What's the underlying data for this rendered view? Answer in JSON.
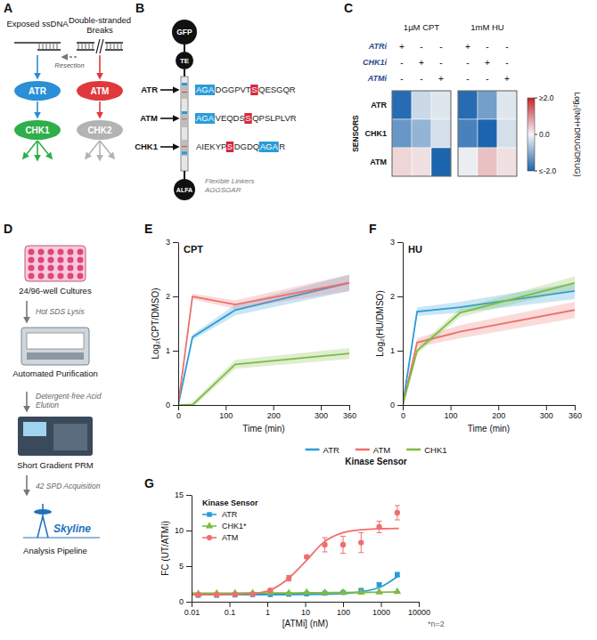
{
  "panel_letters": [
    "A",
    "B",
    "C",
    "D",
    "E",
    "F",
    "G"
  ],
  "diagram_a": {
    "left_title": "Exposed ssDNA",
    "right_title": "Double-stranded Breaks",
    "arrow_label": "Resection",
    "nodes": [
      {
        "label": "ATR",
        "color": "#2b8fd6"
      },
      {
        "label": "ATM",
        "color": "#e0383b"
      },
      {
        "label": "CHK1",
        "color": "#2fae4a"
      },
      {
        "label": "CHK2",
        "color": "#b3b3b3"
      }
    ]
  },
  "diagram_b": {
    "tags": [
      "GFP",
      "TE",
      "ALFA"
    ],
    "sensors": [
      {
        "label": "ATR",
        "segments": [
          {
            "text": "AGA",
            "kind": "linker"
          },
          {
            "text": "DGGPVT",
            "kind": "plain"
          },
          {
            "text": "S",
            "kind": "site"
          },
          {
            "text": "QESGQR",
            "kind": "plain"
          }
        ]
      },
      {
        "label": "ATM",
        "segments": [
          {
            "text": "AGA",
            "kind": "linker"
          },
          {
            "text": "VEQDS",
            "kind": "plain"
          },
          {
            "text": "S",
            "kind": "site"
          },
          {
            "text": "QPSLPLVR",
            "kind": "plain"
          }
        ]
      },
      {
        "label": "CHK1",
        "segments": [
          {
            "text": "AIEKYP",
            "kind": "plain"
          },
          {
            "text": "S",
            "kind": "site"
          },
          {
            "text": "DGDQ",
            "kind": "plain"
          },
          {
            "text": "AGA",
            "kind": "linker"
          },
          {
            "text": "R",
            "kind": "plain"
          }
        ]
      }
    ],
    "linker_note": "Flexible Linkers AGGSGAR"
  },
  "diagram_d": {
    "steps": [
      "24/96-well Cultures",
      "Automated Purification",
      "Short Gradient PRM",
      "Analysis Pipeline"
    ],
    "transitions": [
      "Hot SDS Lysis",
      "Detergent-free Acid Elution",
      "42 SPD Acquisition"
    ],
    "logo": "Skyline"
  },
  "chart_data": [
    {
      "type": "heatmap",
      "panels": [
        {
          "title": "1µM CPT",
          "cells": [
            [
              -1.9,
              -0.4,
              -0.2
            ],
            [
              -1.3,
              -0.9,
              -0.3
            ],
            [
              0.3,
              0.2,
              -2.0
            ]
          ]
        },
        {
          "title": "1mM HU",
          "cells": [
            [
              -1.9,
              -1.2,
              -0.2
            ],
            [
              -1.6,
              -2.0,
              -0.3
            ],
            [
              -0.1,
              0.5,
              0.2
            ]
          ]
        }
      ],
      "inhibitors": [
        {
          "name": "ATRi",
          "signs": [
            "+",
            "-",
            "-"
          ]
        },
        {
          "name": "CHK1i",
          "signs": [
            "-",
            "+",
            "-"
          ]
        },
        {
          "name": "ATMi",
          "signs": [
            "-",
            "-",
            "+"
          ]
        }
      ],
      "rows": [
        "ATR",
        "CHK1",
        "ATM"
      ],
      "row_title": "SENSORS",
      "colorbar": {
        "title": "Log₂(INH+DRUG/DRUG)",
        "range": [
          -2,
          2
        ],
        "ticks": [
          {
            "value": 2,
            "label": "≥2.0"
          },
          {
            "value": 0,
            "label": "0.0"
          },
          {
            "value": -2,
            "label": "≤-2.0"
          }
        ],
        "colors": [
          "#1c65ae",
          "#f5f5f5",
          "#c4262c"
        ]
      }
    },
    {
      "type": "line",
      "title": "CPT",
      "x_label": "Time (min)",
      "y_label": "Log₂(CPT/DMSO)",
      "x": [
        0,
        30,
        120,
        360
      ],
      "xlim": [
        0,
        360
      ],
      "xticks": [
        0,
        100,
        200,
        300,
        360
      ],
      "ylim": [
        0,
        3
      ],
      "yticks": [
        0,
        1,
        2,
        3
      ],
      "legend": "bottom",
      "legend_title": "Kinase Sensor",
      "series": [
        {
          "name": "ATR",
          "color": "#2b9bd8",
          "values": [
            0,
            1.25,
            1.75,
            2.25
          ],
          "errors": [
            0,
            0.05,
            0.1,
            0.15
          ]
        },
        {
          "name": "ATM",
          "color": "#ef6f6c",
          "values": [
            0,
            2.0,
            1.85,
            2.25
          ],
          "errors": [
            0,
            0.05,
            0.08,
            0.15
          ]
        },
        {
          "name": "CHK1",
          "color": "#7dbb42",
          "values": [
            0,
            0.0,
            0.75,
            0.95
          ],
          "errors": [
            0,
            0.05,
            0.08,
            0.1
          ]
        }
      ]
    },
    {
      "type": "line",
      "title": "HU",
      "x_label": "Time (min)",
      "y_label": "Log₂(HU/DMSO)",
      "x": [
        0,
        30,
        120,
        360
      ],
      "xlim": [
        0,
        360
      ],
      "xticks": [
        0,
        100,
        200,
        300,
        360
      ],
      "ylim": [
        0,
        3
      ],
      "yticks": [
        0,
        1,
        2,
        3
      ],
      "series": [
        {
          "name": "ATR",
          "color": "#2b9bd8",
          "values": [
            0,
            1.72,
            1.8,
            2.1
          ],
          "errors": [
            0,
            0.08,
            0.1,
            0.15
          ]
        },
        {
          "name": "ATM",
          "color": "#ef6f6c",
          "values": [
            0,
            1.15,
            1.35,
            1.75
          ],
          "errors": [
            0,
            0.08,
            0.12,
            0.15
          ]
        },
        {
          "name": "CHK1",
          "color": "#7dbb42",
          "values": [
            0,
            1.0,
            1.7,
            2.25
          ],
          "errors": [
            0,
            0.06,
            0.08,
            0.12
          ]
        }
      ]
    },
    {
      "type": "scatter",
      "x_label": "[ATMi] (nM)",
      "y_label": "FC (UT/ATMi)",
      "log": "x",
      "x": [
        0.015,
        0.046,
        0.14,
        0.41,
        1.2,
        3.7,
        11,
        33,
        100,
        300,
        900,
        2700
      ],
      "xlim": [
        0.01,
        10000
      ],
      "xticks": [
        0.01,
        0.1,
        1,
        10,
        100,
        1000,
        10000
      ],
      "ylim": [
        0,
        15
      ],
      "yticks": [
        0,
        5,
        10,
        15
      ],
      "legend": "upper left",
      "legend_title": "Kinase Sensor",
      "annotation": "*n=2",
      "series": [
        {
          "name": "ATR",
          "color": "#2b9bd8",
          "marker": "square",
          "values": [
            0.9,
            0.9,
            0.95,
            1.0,
            1.0,
            1.05,
            1.1,
            1.2,
            1.3,
            1.6,
            2.4,
            3.8
          ],
          "errors": [
            0.05,
            0.05,
            0.05,
            0.05,
            0.05,
            0.05,
            0.1,
            0.1,
            0.1,
            0.15,
            0.2,
            0.3
          ],
          "fit": {
            "x": [
              0.01,
              0.1,
              0.3,
              1,
              3,
              10,
              30,
              100,
              300,
              1000,
              3000
            ],
            "values": [
              1.0,
              1.0,
              1.0,
              1.0,
              1.0,
              1.02,
              1.06,
              1.15,
              1.4,
              2.1,
              3.7
            ]
          }
        },
        {
          "name": "CHK1*",
          "color": "#7dbb42",
          "marker": "triangle",
          "values": [
            1.1,
            1.15,
            1.2,
            1.2,
            1.25,
            1.2,
            1.3,
            1.25,
            1.3,
            1.3,
            1.35,
            1.4
          ],
          "errors": [
            0.05,
            0.05,
            0.05,
            0.05,
            0.05,
            0.05,
            0.05,
            0.05,
            0.05,
            0.05,
            0.05,
            0.05
          ],
          "fit": {
            "x": [
              0.01,
              0.1,
              0.3,
              1,
              3,
              10,
              30,
              100,
              300,
              1000,
              3000
            ],
            "values": [
              1.2,
              1.2,
              1.22,
              1.23,
              1.24,
              1.25,
              1.27,
              1.29,
              1.31,
              1.34,
              1.38
            ]
          }
        },
        {
          "name": "ATM",
          "color": "#ef6f6c",
          "marker": "circle",
          "values": [
            1.0,
            1.0,
            1.05,
            1.1,
            1.6,
            3.3,
            6.3,
            8.0,
            8.0,
            8.3,
            10.5,
            12.5
          ],
          "errors": [
            0.05,
            0.05,
            0.05,
            0.1,
            0.2,
            0.4,
            0.2,
            1.0,
            1.2,
            1.4,
            0.8,
            1.0
          ],
          "fit": {
            "x": [
              0.01,
              0.1,
              0.3,
              1,
              3,
              10,
              30,
              100,
              300,
              1000,
              3000
            ],
            "values": [
              1.0,
              1.03,
              1.1,
              1.5,
              2.9,
              5.6,
              8.3,
              9.7,
              10.1,
              10.25,
              10.3
            ]
          }
        }
      ]
    }
  ]
}
